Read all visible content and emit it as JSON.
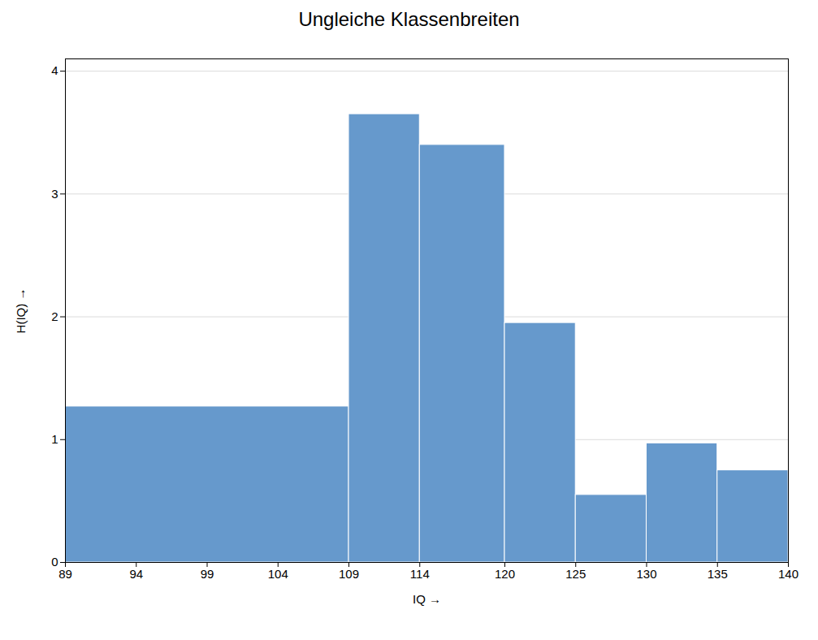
{
  "chart_data": {
    "type": "histogram",
    "title": "Ungleiche Klassenbreiten",
    "xlabel": "IQ",
    "ylabel": "H(IQ)",
    "bins": [
      89,
      109,
      114,
      120,
      125,
      130,
      135,
      140
    ],
    "values": [
      1.27,
      3.65,
      3.4,
      1.95,
      0.55,
      0.97,
      0.75
    ],
    "color": "#6699CC",
    "xlim": [
      89,
      140
    ],
    "xticks": [
      89,
      94,
      99,
      104,
      109,
      114,
      120,
      125,
      130,
      135,
      140
    ],
    "ylim": [
      0,
      4.1
    ],
    "yticks": [
      0,
      1,
      2,
      3,
      4
    ],
    "grid": true
  }
}
